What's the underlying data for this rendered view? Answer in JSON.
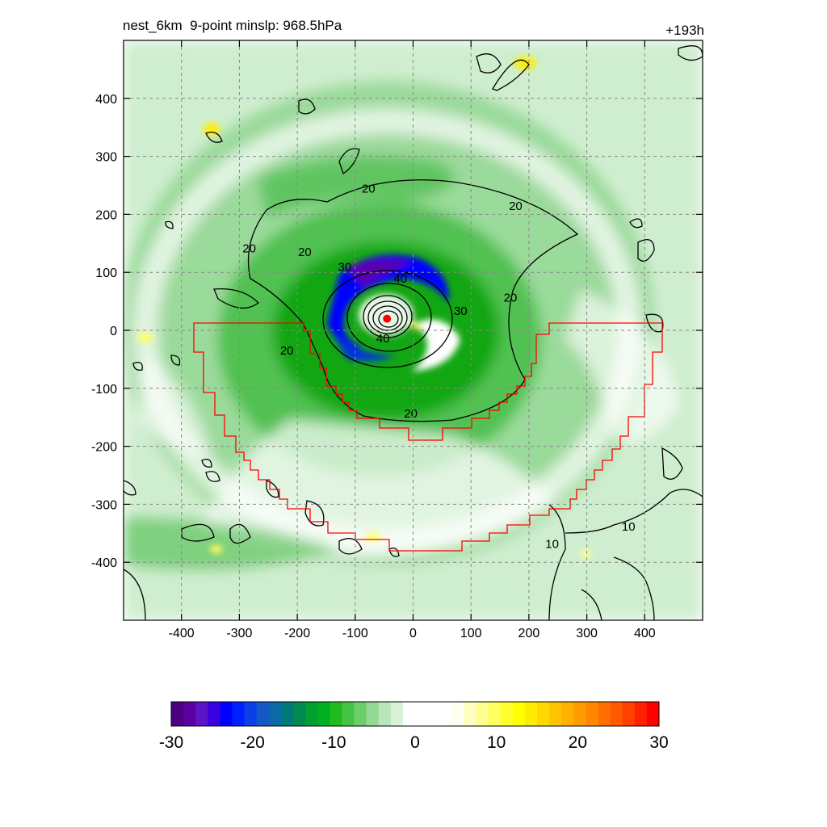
{
  "chart_data": {
    "type": "heatmap",
    "title_left": "nest_6km  9-point minslp: 968.5hPa",
    "title_right": "+193h",
    "x_ticks": [
      -400,
      -300,
      -200,
      -100,
      0,
      100,
      200,
      300,
      400
    ],
    "y_ticks": [
      400,
      300,
      200,
      100,
      0,
      -100,
      -200,
      -300,
      -400
    ],
    "xlim": [
      -500,
      500
    ],
    "ylim": [
      -500,
      500
    ],
    "grid": true,
    "center": {
      "x": -45,
      "y": 20
    },
    "colorbar": {
      "ticks": [
        -30,
        -20,
        -10,
        0,
        10,
        20,
        30
      ],
      "colors": [
        "#4b0082",
        "#5a00a0",
        "#5d14c8",
        "#3a00e0",
        "#0000ff",
        "#0020ff",
        "#0a40e8",
        "#1458c8",
        "#0a6aa8",
        "#007a78",
        "#008a50",
        "#00a030",
        "#00b020",
        "#20bb20",
        "#44c444",
        "#6ccd6c",
        "#94d894",
        "#b8e6b8",
        "#d8f2d8",
        "#ffffff",
        "#ffffff",
        "#ffffff",
        "#ffffff",
        "#fffff0",
        "#ffffc0",
        "#ffff90",
        "#ffff60",
        "#ffff30",
        "#ffff00",
        "#ffec00",
        "#ffd800",
        "#ffc400",
        "#ffb000",
        "#ff9c00",
        "#ff8800",
        "#ff7000",
        "#ff5a00",
        "#ff4000",
        "#ff2000",
        "#ff0000"
      ]
    },
    "contour_labels": [
      {
        "text": "20",
        "x": -77,
        "y": 243
      },
      {
        "text": "20",
        "x": 177,
        "y": 213
      },
      {
        "text": "20",
        "x": -283,
        "y": 140
      },
      {
        "text": "20",
        "x": -187,
        "y": 134
      },
      {
        "text": "20",
        "x": 168,
        "y": 55
      },
      {
        "text": "30",
        "x": -118,
        "y": 108
      },
      {
        "text": "40",
        "x": -22,
        "y": 88
      },
      {
        "text": "30",
        "x": 82,
        "y": 32
      },
      {
        "text": "40",
        "x": -52,
        "y": -15
      },
      {
        "text": "20",
        "x": -218,
        "y": -36
      },
      {
        "text": "20",
        "x": -4,
        "y": -145
      },
      {
        "text": "10",
        "x": 240,
        "y": -370
      },
      {
        "text": "10",
        "x": 372,
        "y": -340
      }
    ]
  }
}
